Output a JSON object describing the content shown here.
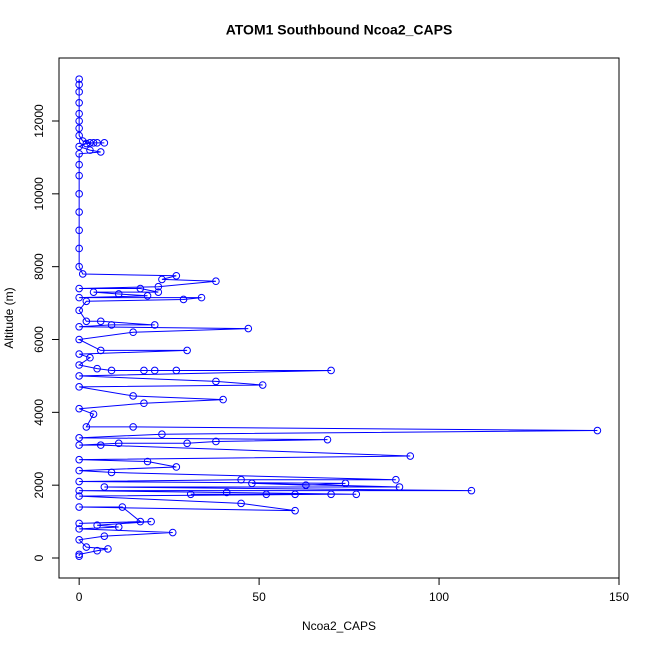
{
  "chart_data": {
    "type": "line",
    "title": "ATOM1 Southbound Ncoa2_CAPS",
    "x_label": "Ncoa2_CAPS",
    "y_label": "Altitude (m)",
    "x": [
      0,
      0,
      0,
      0,
      0,
      0,
      0,
      0,
      1,
      3,
      5,
      7,
      4,
      2,
      0,
      3,
      6,
      0,
      0,
      0,
      0,
      0,
      0,
      0,
      0,
      1,
      27,
      23,
      38,
      22,
      0,
      17,
      22,
      4,
      11,
      19,
      0,
      34,
      29,
      2,
      0,
      2,
      6,
      21,
      9,
      0,
      47,
      15,
      0,
      6,
      30,
      0,
      3,
      0,
      5,
      9,
      18,
      21,
      27,
      70,
      0,
      38,
      51,
      0,
      15,
      40,
      18,
      0,
      4,
      2,
      15,
      144,
      23,
      0,
      69,
      38,
      30,
      11,
      0,
      6,
      92,
      0,
      19,
      27,
      0,
      9,
      88,
      45,
      0,
      74,
      63,
      48,
      89,
      7,
      109,
      0,
      41,
      77,
      60,
      52,
      31,
      70,
      0,
      45,
      60,
      0,
      12,
      17,
      0,
      20,
      5,
      11,
      0,
      26,
      7,
      0,
      2,
      8,
      5,
      0,
      0
    ],
    "series": [
      {
        "name": "Altitude",
        "color": "#0000ff",
        "values": [
          13150,
          13000,
          12800,
          12500,
          12200,
          12000,
          11800,
          11600,
          11450,
          11400,
          11400,
          11400,
          11400,
          11380,
          11300,
          11200,
          11150,
          11100,
          10800,
          10500,
          10000,
          9500,
          9000,
          8500,
          8000,
          7800,
          7750,
          7650,
          7600,
          7450,
          7400,
          7400,
          7300,
          7300,
          7250,
          7200,
          7150,
          7150,
          7100,
          7050,
          6800,
          6500,
          6500,
          6400,
          6400,
          6350,
          6300,
          6200,
          6000,
          5700,
          5700,
          5600,
          5500,
          5300,
          5200,
          5150,
          5150,
          5150,
          5150,
          5150,
          5000,
          4850,
          4750,
          4700,
          4450,
          4350,
          4250,
          4100,
          3950,
          3600,
          3600,
          3500,
          3400,
          3300,
          3250,
          3200,
          3150,
          3150,
          3100,
          3100,
          2800,
          2700,
          2650,
          2500,
          2400,
          2350,
          2150,
          2150,
          2100,
          2050,
          2000,
          2050,
          1950,
          1950,
          1850,
          1850,
          1800,
          1750,
          1750,
          1750,
          1750,
          1750,
          1700,
          1500,
          1300,
          1400,
          1400,
          1000,
          950,
          1000,
          900,
          850,
          800,
          700,
          600,
          500,
          300,
          250,
          200,
          100,
          50
        ]
      }
    ],
    "xlim": [
      -5.6,
      150
    ],
    "ylim": [
      -549,
      13730
    ],
    "xticks": [
      0,
      50,
      100,
      150
    ],
    "yticks": [
      0,
      2000,
      4000,
      6000,
      8000,
      10000,
      12000
    ]
  }
}
